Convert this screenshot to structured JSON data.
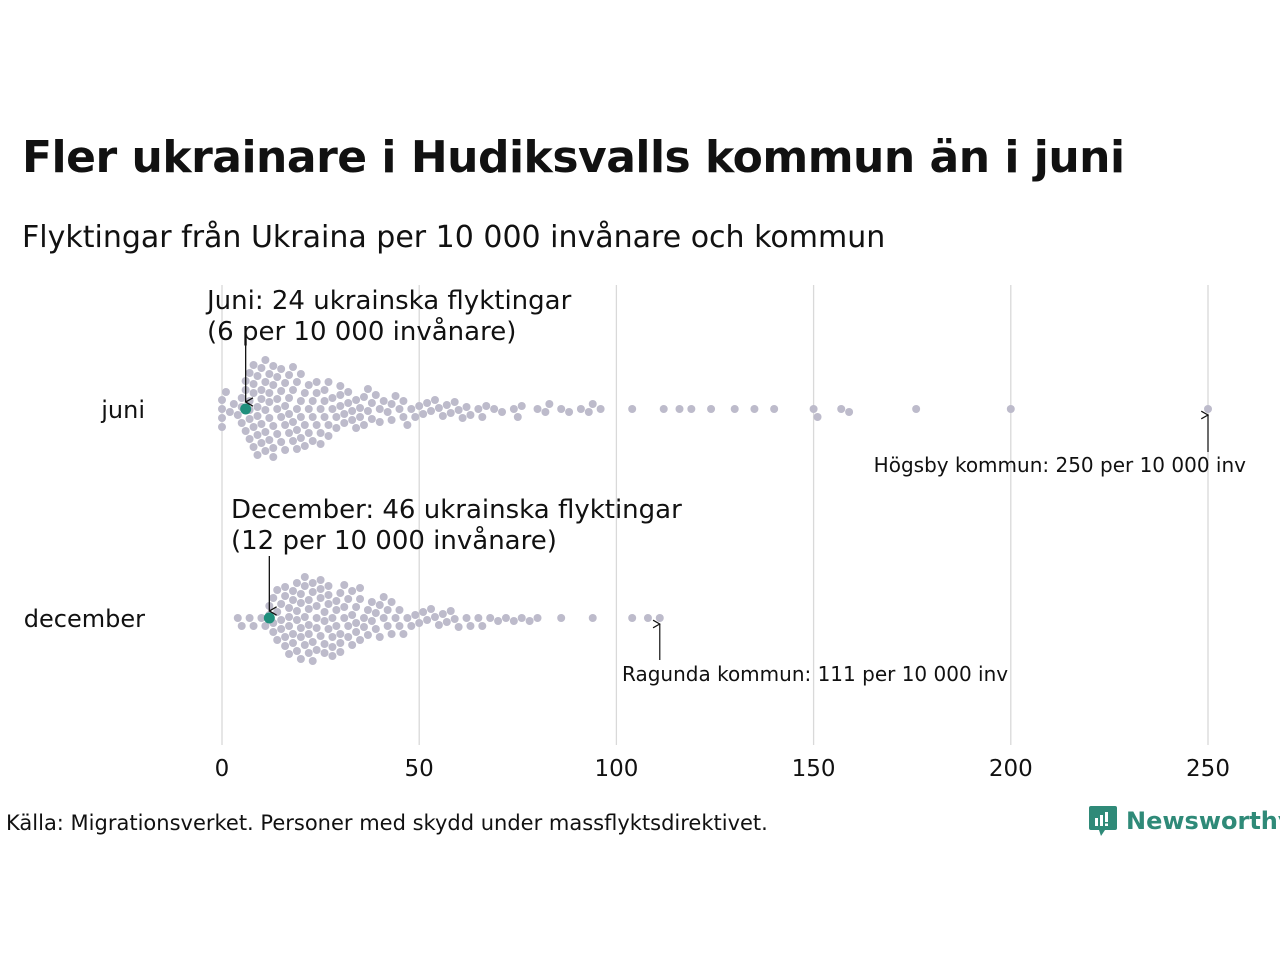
{
  "title": "Fler ukrainare i Hudiksvalls kommun än i juni",
  "subtitle": "Flyktingar från Ukraina per 10 000 invånare och kommun",
  "source": "Källa: Migrationsverket. Personer med skydd under massflyktsdirektivet.",
  "logo": "Newsworthy",
  "colors": {
    "dot": "#bdbbcb",
    "highlight": "#1f8f7c",
    "grid": "#d9d9d9"
  },
  "chart_data": {
    "type": "scatter",
    "subtype": "beeswarm",
    "xlim": [
      0,
      250
    ],
    "xticks": [
      0,
      50,
      100,
      150,
      200,
      250
    ],
    "grid": true,
    "series": [
      {
        "name": "juni",
        "highlight": 6,
        "highlight_annotation": [
          "Juni: 24 ukrainska flyktingar",
          "(6 per 10 000 invånare)"
        ],
        "max_annotation": "Högsby kommun: 250 per 10 000 inv",
        "values": [
          0,
          0,
          0,
          0,
          1,
          2,
          3,
          4,
          5,
          5,
          5,
          6,
          6,
          6,
          7,
          7,
          7,
          7,
          7,
          8,
          8,
          8,
          8,
          8,
          9,
          9,
          9,
          9,
          9,
          10,
          10,
          10,
          10,
          10,
          11,
          11,
          11,
          11,
          11,
          12,
          12,
          12,
          12,
          12,
          13,
          13,
          13,
          13,
          13,
          14,
          14,
          14,
          14,
          15,
          15,
          15,
          15,
          16,
          16,
          16,
          16,
          17,
          17,
          17,
          17,
          18,
          18,
          18,
          18,
          19,
          19,
          19,
          19,
          20,
          20,
          20,
          20,
          21,
          21,
          21,
          22,
          22,
          22,
          23,
          23,
          23,
          24,
          24,
          24,
          25,
          25,
          25,
          26,
          26,
          26,
          27,
          27,
          27,
          28,
          28,
          29,
          29,
          30,
          30,
          30,
          31,
          31,
          32,
          32,
          33,
          33,
          34,
          34,
          35,
          35,
          36,
          36,
          37,
          37,
          38,
          38,
          39,
          40,
          40,
          41,
          42,
          43,
          43,
          44,
          45,
          46,
          46,
          47,
          48,
          49,
          50,
          51,
          52,
          53,
          54,
          55,
          56,
          57,
          58,
          59,
          60,
          61,
          62,
          63,
          65,
          66,
          67,
          69,
          71,
          74,
          75,
          76,
          80,
          82,
          83,
          86,
          88,
          91,
          93,
          94,
          96,
          104,
          112,
          116,
          119,
          124,
          130,
          135,
          140,
          150,
          151,
          157,
          159,
          176,
          200,
          250
        ]
      },
      {
        "name": "december",
        "highlight": 12,
        "highlight_annotation": [
          "December: 46 ukrainska flyktingar",
          "(12 per 10 000 invånare)"
        ],
        "max_annotation": "Ragunda kommun: 111 per 10 000 inv",
        "values": [
          4,
          5,
          7,
          8,
          10,
          11,
          12,
          12,
          13,
          13,
          13,
          14,
          14,
          14,
          15,
          15,
          15,
          16,
          16,
          16,
          16,
          17,
          17,
          17,
          17,
          18,
          18,
          18,
          18,
          19,
          19,
          19,
          19,
          20,
          20,
          20,
          20,
          20,
          21,
          21,
          21,
          21,
          22,
          22,
          22,
          22,
          22,
          23,
          23,
          23,
          23,
          24,
          24,
          24,
          24,
          25,
          25,
          25,
          25,
          26,
          26,
          26,
          26,
          27,
          27,
          27,
          27,
          28,
          28,
          28,
          28,
          29,
          29,
          29,
          30,
          30,
          30,
          30,
          31,
          31,
          31,
          32,
          32,
          32,
          33,
          33,
          33,
          34,
          34,
          34,
          35,
          35,
          35,
          36,
          36,
          37,
          37,
          38,
          38,
          39,
          39,
          40,
          40,
          41,
          41,
          42,
          42,
          43,
          43,
          44,
          45,
          45,
          46,
          47,
          48,
          49,
          50,
          51,
          52,
          53,
          54,
          55,
          56,
          57,
          58,
          59,
          60,
          62,
          63,
          65,
          66,
          68,
          70,
          72,
          74,
          76,
          78,
          80,
          86,
          94,
          104,
          108,
          111
        ]
      }
    ]
  }
}
